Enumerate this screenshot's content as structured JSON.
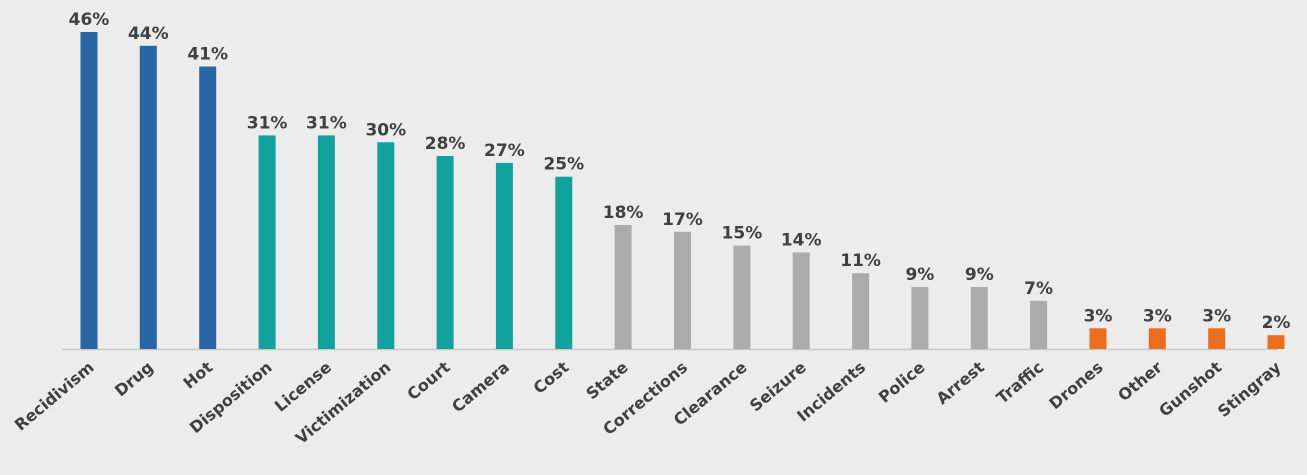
{
  "chart_data": {
    "type": "bar",
    "categories": [
      "Recidivism",
      "Drug",
      "Hot",
      "Disposition",
      "License",
      "Victimization",
      "Court",
      "Camera",
      "Cost",
      "State",
      "Corrections",
      "Clearance",
      "Seizure",
      "Incidents",
      "Police",
      "Arrest",
      "Traffic",
      "Drones",
      "Other",
      "Gunshot",
      "Stingray"
    ],
    "values": [
      46,
      44,
      41,
      31,
      31,
      30,
      28,
      27,
      25,
      18,
      17,
      15,
      14,
      11,
      9,
      9,
      7,
      3,
      3,
      3,
      2
    ],
    "value_labels": [
      "46%",
      "44%",
      "41%",
      "31%",
      "31%",
      "30%",
      "28%",
      "27%",
      "25%",
      "18%",
      "17%",
      "15%",
      "14%",
      "11%",
      "9%",
      "9%",
      "7%",
      "3%",
      "3%",
      "3%",
      "2%"
    ],
    "bar_colors": [
      "#2966a3",
      "#2966a3",
      "#2966a3",
      "#12a29e",
      "#12a29e",
      "#12a29e",
      "#12a29e",
      "#12a29e",
      "#12a29e",
      "#ababab",
      "#ababab",
      "#ababab",
      "#ababab",
      "#ababab",
      "#ababab",
      "#ababab",
      "#ababab",
      "#ec6d1c",
      "#ec6d1c",
      "#ec6d1c",
      "#ec6d1c"
    ],
    "title": "",
    "xlabel": "",
    "ylabel": "",
    "ylim": [
      0,
      46
    ],
    "grid": false,
    "legend": "none",
    "axis_color": "#c8c8c8",
    "text_color": "#404040",
    "background": "#ececec"
  }
}
